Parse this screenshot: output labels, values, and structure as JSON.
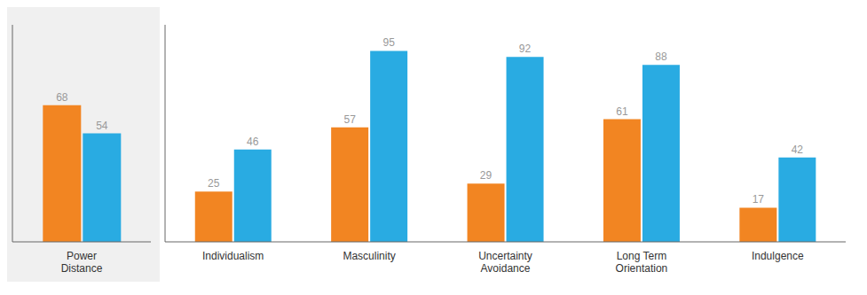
{
  "chart_data": [
    {
      "type": "bar",
      "categories": [
        "Power\nDistance"
      ],
      "series": [
        {
          "color": "#F28522",
          "values": [
            68
          ]
        },
        {
          "color": "#29ABE2",
          "values": [
            54
          ]
        }
      ],
      "ylim": [
        0,
        108
      ],
      "grid": false,
      "data_labels": true,
      "tick_labels": "x"
    },
    {
      "type": "bar",
      "categories": [
        "Individualism",
        "Masculinity",
        "Uncertainty\nAvoidance",
        "Long Term\nOrientation",
        "Indulgence"
      ],
      "series": [
        {
          "color": "#F28522",
          "values": [
            25,
            57,
            29,
            61,
            17
          ]
        },
        {
          "color": "#29ABE2",
          "values": [
            46,
            95,
            92,
            88,
            42
          ]
        }
      ],
      "ylim": [
        0,
        108
      ],
      "grid": false,
      "data_labels": true,
      "tick_labels": "x"
    }
  ]
}
